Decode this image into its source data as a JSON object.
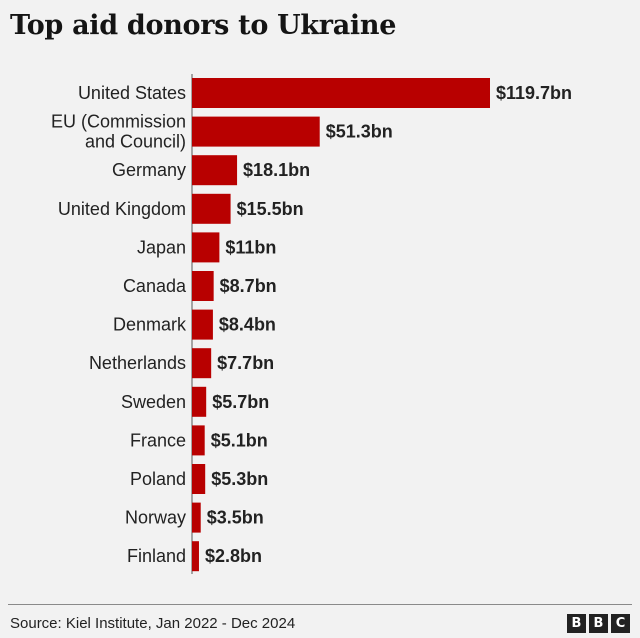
{
  "chart_data": {
    "type": "bar",
    "orientation": "horizontal",
    "title": "Top aid donors to Ukraine",
    "categories": [
      [
        "United States"
      ],
      [
        "EU (Commission",
        "and Council)"
      ],
      [
        "Germany"
      ],
      [
        "United Kingdom"
      ],
      [
        "Japan"
      ],
      [
        "Canada"
      ],
      [
        "Denmark"
      ],
      [
        "Netherlands"
      ],
      [
        "Sweden"
      ],
      [
        "France"
      ],
      [
        "Poland"
      ],
      [
        "Norway"
      ],
      [
        "Finland"
      ]
    ],
    "values": [
      119.7,
      51.3,
      18.1,
      15.5,
      11,
      8.7,
      8.4,
      7.7,
      5.7,
      5.1,
      5.3,
      3.5,
      2.8
    ],
    "value_labels": [
      "$119.7bn",
      "$51.3bn",
      "$18.1bn",
      "$15.5bn",
      "$11bn",
      "$8.7bn",
      "$8.4bn",
      "$7.7bn",
      "$5.7bn",
      "$5.1bn",
      "$5.3bn",
      "$3.5bn",
      "$2.8bn"
    ],
    "xlim": [
      0,
      119.7
    ],
    "bar_color": "#b80000",
    "xlabel": "",
    "ylabel": ""
  },
  "footer": {
    "source": "Source: Kiel Institute, Jan 2022 - Dec 2024",
    "logo_letters": [
      "B",
      "B",
      "C"
    ]
  }
}
